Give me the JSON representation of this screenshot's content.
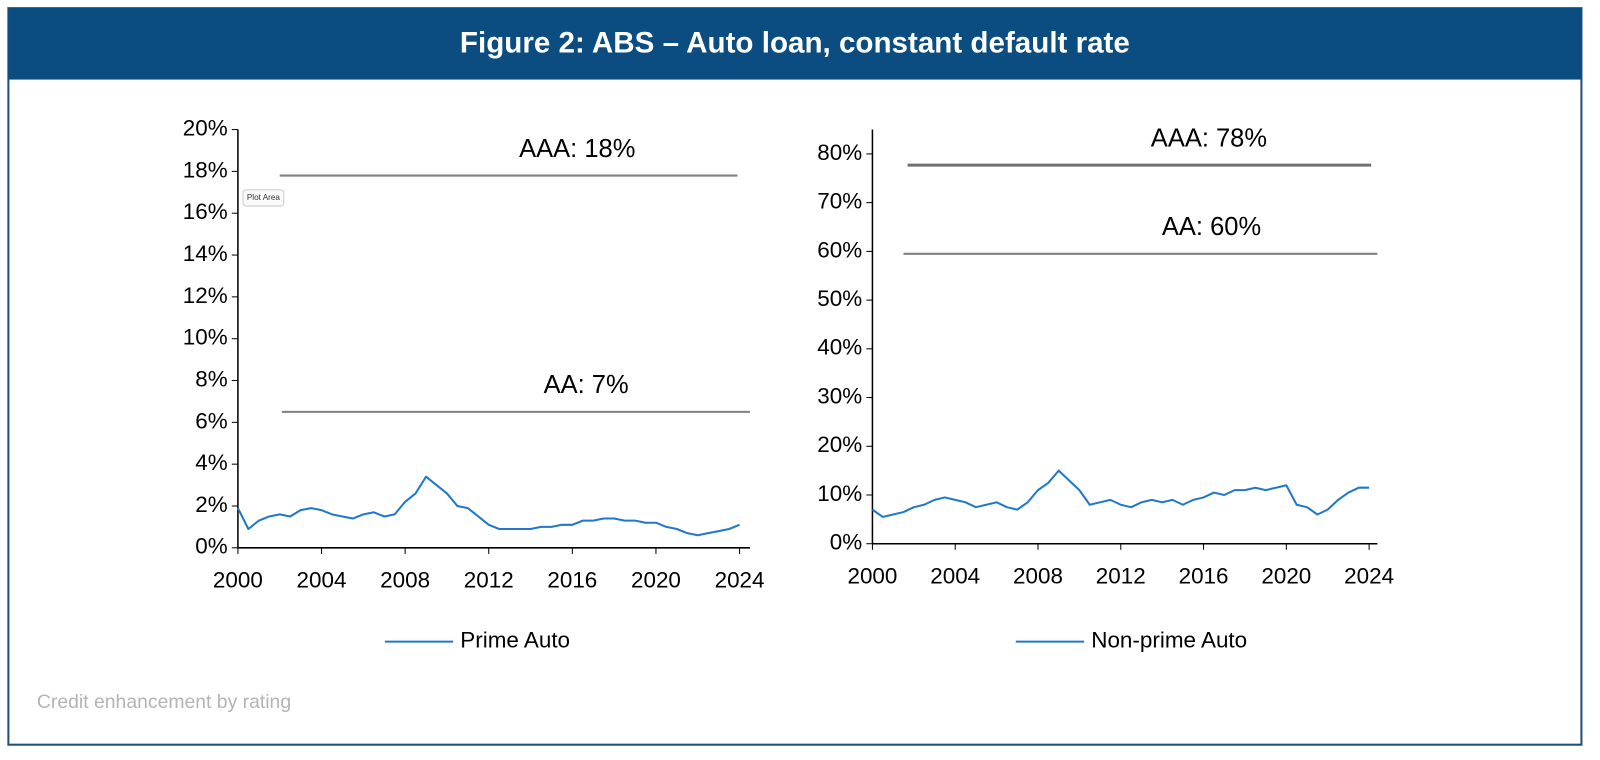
{
  "title": "Figure 2: ABS – Auto loan, constant default rate",
  "footnote": "Credit enhancement by rating",
  "tooltip": "Plot Area",
  "chart_data": [
    {
      "type": "line",
      "grid": false,
      "x": [
        2000,
        2000.5,
        2001,
        2001.5,
        2002,
        2002.5,
        2003,
        2003.5,
        2004,
        2004.5,
        2005,
        2005.5,
        2006,
        2006.5,
        2007,
        2007.5,
        2008,
        2008.5,
        2009,
        2009.5,
        2010,
        2010.5,
        2011,
        2011.5,
        2012,
        2012.5,
        2013,
        2013.5,
        2014,
        2014.5,
        2015,
        2015.5,
        2016,
        2016.5,
        2017,
        2017.5,
        2018,
        2018.5,
        2019,
        2019.5,
        2020,
        2020.5,
        2021,
        2021.5,
        2022,
        2022.5,
        2023,
        2023.5,
        2024
      ],
      "series": [
        {
          "name": "Prime Auto",
          "color": "#1f78cc",
          "values": [
            1.9,
            0.9,
            1.3,
            1.5,
            1.6,
            1.5,
            1.8,
            1.9,
            1.8,
            1.6,
            1.5,
            1.4,
            1.6,
            1.7,
            1.5,
            1.6,
            2.2,
            2.6,
            3.4,
            3.0,
            2.6,
            2.0,
            1.9,
            1.5,
            1.1,
            0.9,
            0.9,
            0.9,
            0.9,
            1.0,
            1.0,
            1.1,
            1.1,
            1.3,
            1.3,
            1.4,
            1.4,
            1.3,
            1.3,
            1.2,
            1.2,
            1.0,
            0.9,
            0.7,
            0.6,
            0.7,
            0.8,
            0.9,
            1.1
          ]
        }
      ],
      "xlim": [
        2000,
        2024.5
      ],
      "xticks": [
        2000,
        2004,
        2008,
        2012,
        2016,
        2020,
        2024
      ],
      "ylim": [
        0,
        20
      ],
      "yticks": [
        {
          "value": 0,
          "label": "0%"
        },
        {
          "value": 2,
          "label": "2%"
        },
        {
          "value": 4,
          "label": "4%"
        },
        {
          "value": 6,
          "label": "6%"
        },
        {
          "value": 8,
          "label": "8%"
        },
        {
          "value": 10,
          "label": "10%"
        },
        {
          "value": 12,
          "label": "12%"
        },
        {
          "value": 14,
          "label": "14%"
        },
        {
          "value": 16,
          "label": "16%"
        },
        {
          "value": 18,
          "label": "18%"
        },
        {
          "value": 20,
          "label": "20%"
        }
      ],
      "annotations": [
        {
          "text": "AAA: 18%",
          "value": 17.8,
          "x": [
            2002,
            2023.9
          ],
          "color": "#808080"
        },
        {
          "text": "AA: 7%",
          "value": 6.5,
          "x": [
            2002.1,
            2024.5
          ],
          "color": "#808080"
        }
      ]
    },
    {
      "type": "line",
      "grid": false,
      "x": [
        2000,
        2000.5,
        2001,
        2001.5,
        2002,
        2002.5,
        2003,
        2003.5,
        2004,
        2004.5,
        2005,
        2005.5,
        2006,
        2006.5,
        2007,
        2007.5,
        2008,
        2008.5,
        2009,
        2009.5,
        2010,
        2010.5,
        2011,
        2011.5,
        2012,
        2012.5,
        2013,
        2013.5,
        2014,
        2014.5,
        2015,
        2015.5,
        2016,
        2016.5,
        2017,
        2017.5,
        2018,
        2018.5,
        2019,
        2019.5,
        2020,
        2020.5,
        2021,
        2021.5,
        2022,
        2022.5,
        2023,
        2023.5,
        2024
      ],
      "series": [
        {
          "name": "Non-prime Auto",
          "color": "#1f78cc",
          "values": [
            7,
            5.5,
            6,
            6.5,
            7.5,
            8,
            9,
            9.5,
            9,
            8.5,
            7.5,
            8,
            8.5,
            7.5,
            7,
            8.5,
            11,
            12.5,
            15,
            13,
            11,
            8,
            8.5,
            9,
            8,
            7.5,
            8.5,
            9,
            8.5,
            9,
            8,
            9,
            9.5,
            10.5,
            10,
            11,
            11,
            11.5,
            11,
            11.5,
            12,
            8,
            7.5,
            6,
            7,
            9,
            10.5,
            11.5,
            11.5
          ]
        }
      ],
      "xlim": [
        2000,
        2024.4
      ],
      "xticks": [
        2000,
        2004,
        2008,
        2012,
        2016,
        2020,
        2024
      ],
      "ylim": [
        0,
        85
      ],
      "yticks": [
        {
          "value": 0,
          "label": "0%"
        },
        {
          "value": 10,
          "label": "10%"
        },
        {
          "value": 20,
          "label": "20%"
        },
        {
          "value": 30,
          "label": "30%"
        },
        {
          "value": 40,
          "label": "40%"
        },
        {
          "value": 50,
          "label": "50%"
        },
        {
          "value": 60,
          "label": "60%"
        },
        {
          "value": 70,
          "label": "70%"
        },
        {
          "value": 80,
          "label": "80%"
        }
      ],
      "annotations": [
        {
          "text": "AAA: 78%",
          "value": 77.7,
          "x": [
            2001.7,
            2024.1
          ],
          "color": "#707070"
        },
        {
          "text": "AA: 60%",
          "value": 59.5,
          "x": [
            2001.5,
            2024.4
          ],
          "color": "#808080"
        }
      ]
    }
  ]
}
